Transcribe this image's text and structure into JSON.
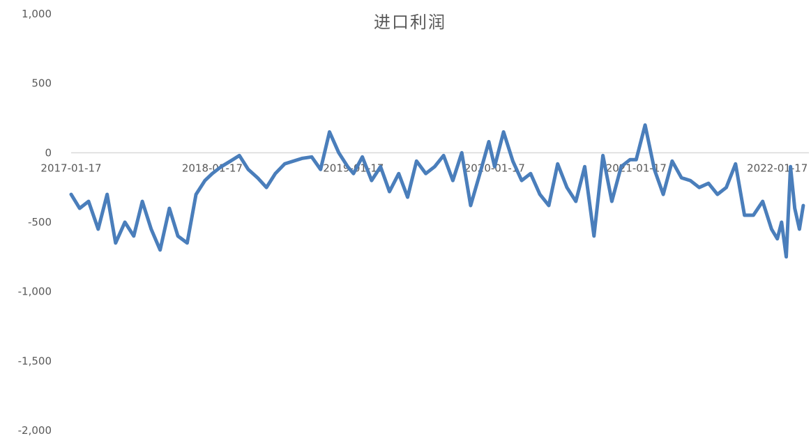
{
  "chart_data": {
    "type": "line",
    "title": "进口利润",
    "xlabel": "",
    "ylabel": "",
    "ylim": [
      -2000,
      1000
    ],
    "y_ticks": [
      {
        "value": 1000,
        "label": "1,000"
      },
      {
        "value": 500,
        "label": "500"
      },
      {
        "value": 0,
        "label": "0"
      },
      {
        "value": -500,
        "label": "-500"
      },
      {
        "value": -1000,
        "label": "-1,000"
      },
      {
        "value": -1500,
        "label": "-1,500"
      },
      {
        "value": -2000,
        "label": "-2,000"
      }
    ],
    "x_ticks": [
      "2017-01-17",
      "2018-01-17",
      "2019-01-17",
      "2020-01-17",
      "2021-01-17",
      "2022-01-17"
    ],
    "grid": false,
    "legend": "none",
    "series": [
      {
        "color": "#4a7ebb",
        "x": [
          "2017-01-17",
          "2017-02-08",
          "2017-03-03",
          "2017-03-28",
          "2017-04-20",
          "2017-05-12",
          "2017-06-05",
          "2017-06-28",
          "2017-07-20",
          "2017-08-12",
          "2017-09-04",
          "2017-09-28",
          "2017-10-20",
          "2017-11-13",
          "2017-12-06",
          "2017-12-29",
          "2018-01-17",
          "2018-02-09",
          "2018-03-05",
          "2018-03-28",
          "2018-04-20",
          "2018-05-14",
          "2018-06-06",
          "2018-06-29",
          "2018-07-23",
          "2018-08-15",
          "2018-09-07",
          "2018-10-01",
          "2018-10-24",
          "2018-11-16",
          "2018-12-10",
          "2019-01-02",
          "2019-01-17",
          "2019-02-09",
          "2019-03-05",
          "2019-03-28",
          "2019-04-20",
          "2019-05-14",
          "2019-06-06",
          "2019-06-29",
          "2019-07-23",
          "2019-08-15",
          "2019-09-07",
          "2019-10-01",
          "2019-10-24",
          "2019-11-16",
          "2019-12-10",
          "2020-01-02",
          "2020-01-17",
          "2020-02-09",
          "2020-03-04",
          "2020-03-27",
          "2020-04-19",
          "2020-05-13",
          "2020-06-05",
          "2020-06-28",
          "2020-07-22",
          "2020-08-14",
          "2020-09-06",
          "2020-09-30",
          "2020-10-23",
          "2020-11-15",
          "2020-12-09",
          "2021-01-01",
          "2021-01-17",
          "2021-02-09",
          "2021-03-05",
          "2021-03-28",
          "2021-04-20",
          "2021-05-14",
          "2021-06-06",
          "2021-06-29",
          "2021-07-23",
          "2021-08-15",
          "2021-09-07",
          "2021-10-01",
          "2021-10-24",
          "2021-11-16",
          "2021-12-10",
          "2022-01-02",
          "2022-01-17",
          "2022-01-28",
          "2022-02-09",
          "2022-02-20",
          "2022-03-03",
          "2022-03-15",
          "2022-03-25"
        ],
        "y": [
          -300,
          -400,
          -350,
          -550,
          -300,
          -650,
          -500,
          -600,
          -350,
          -550,
          -700,
          -400,
          -600,
          -650,
          -300,
          -200,
          -150,
          -100,
          -60,
          -20,
          -120,
          -180,
          -250,
          -150,
          -80,
          -60,
          -40,
          -30,
          -120,
          150,
          0,
          -100,
          -150,
          -30,
          -200,
          -100,
          -280,
          -150,
          -320,
          -60,
          -150,
          -100,
          -20,
          -200,
          0,
          -380,
          -150,
          80,
          -100,
          150,
          -60,
          -200,
          -150,
          -300,
          -380,
          -80,
          -250,
          -350,
          -100,
          -600,
          -20,
          -350,
          -100,
          -50,
          -50,
          200,
          -120,
          -300,
          -60,
          -180,
          -200,
          -250,
          -220,
          -300,
          -250,
          -80,
          -450,
          -450,
          -350,
          -550,
          -620,
          -500,
          -750,
          -100,
          -400,
          -550,
          -380
        ]
      }
    ]
  }
}
